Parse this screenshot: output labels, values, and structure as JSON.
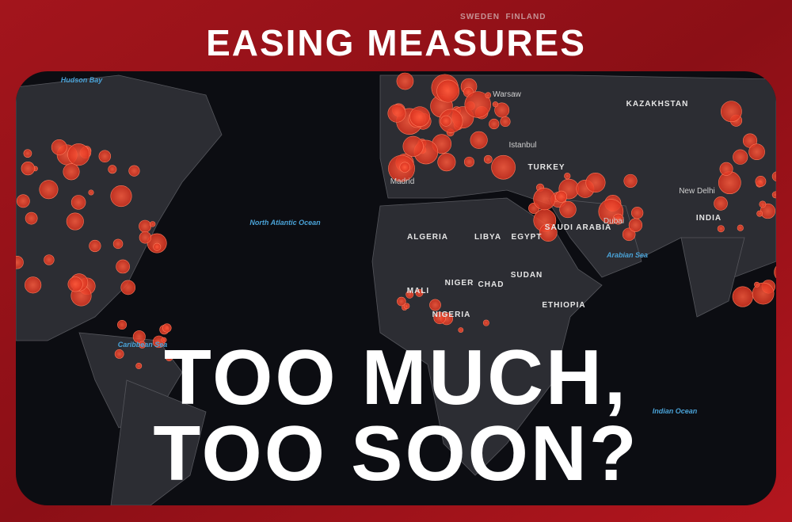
{
  "header": {
    "title": "EASING MEASURES"
  },
  "headline": {
    "lines": [
      "TOO MUCH,",
      "TOO SOON?"
    ]
  },
  "map_labels": {
    "hudson_bay": "Hudson Bay",
    "north_atlantic": "North Atlantic Ocean",
    "kazakhstan": "KAZAKHSTAN",
    "istanbul": "Istanbul",
    "turkey": "TURKEY",
    "madrid": "Madrid",
    "algeria": "ALGERIA",
    "libya": "LIBYA",
    "egypt": "EGYPT",
    "mali": "MALI",
    "niger": "NIGER",
    "chad": "CHAD",
    "sudan": "SUDAN",
    "nigeria": "NIGERIA",
    "ethiopia": "ETHIOPIA",
    "saudi_arabia": "SAUDI ARABIA",
    "dubai": "Dubai",
    "arabian_sea": "Arabian Sea",
    "new_delhi": "New Delhi",
    "india": "INDIA",
    "caribbean_sea": "Caribbean Sea",
    "indian_ocean": "Indian Ocean",
    "warsaw": "Warsaw",
    "sweden": "SWEDEN",
    "finland": "FINLAND"
  }
}
